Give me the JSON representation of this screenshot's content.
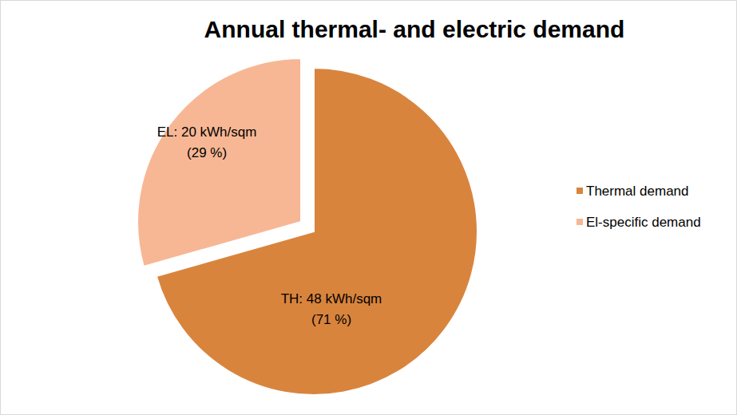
{
  "chart_data": {
    "type": "pie",
    "title": "Annual thermal- and electric demand",
    "categories": [
      "Thermal demand",
      "El-specific demand"
    ],
    "values": [
      48,
      20
    ],
    "value_labels": [
      "TH: 48 kWh/sqm",
      "EL: 20 kWh/sqm"
    ],
    "percent_labels": [
      "(71 %)",
      "(29 %)"
    ],
    "colors": [
      "#d9843d",
      "#f7b794"
    ],
    "legend": "right",
    "data_labels": true
  }
}
